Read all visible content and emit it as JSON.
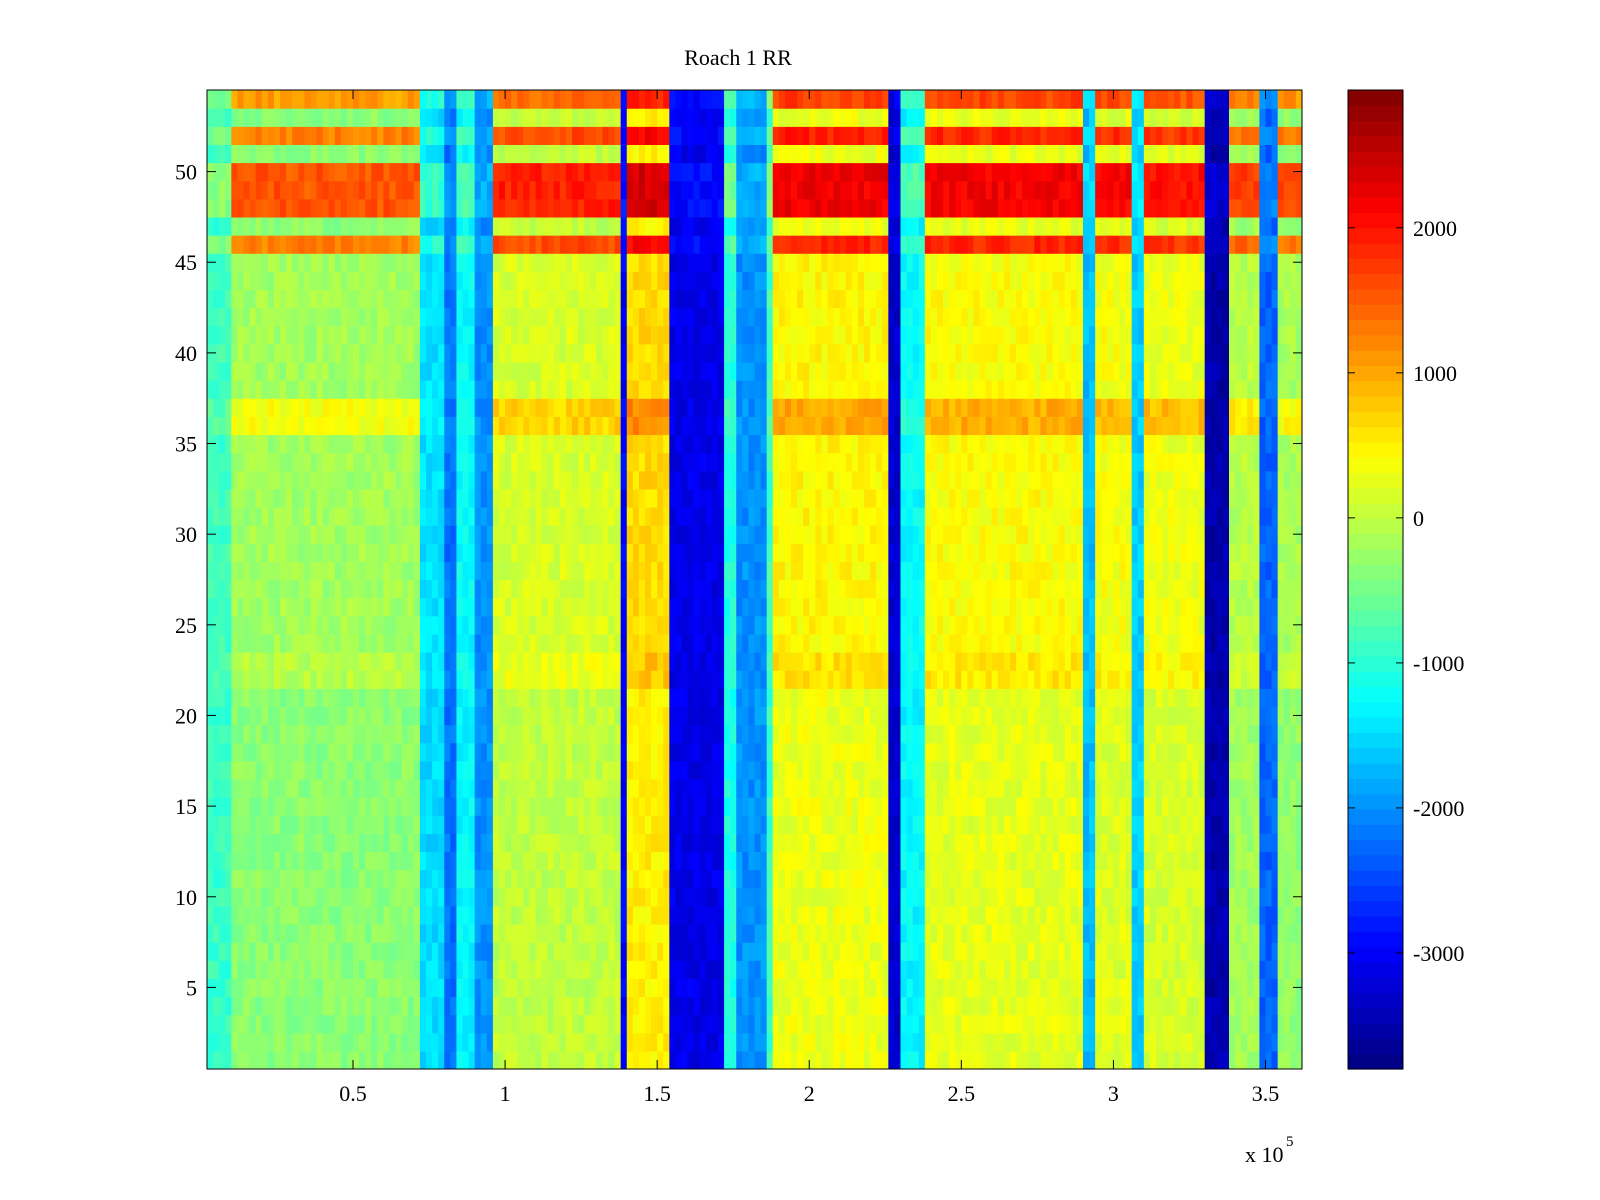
{
  "chart_data": {
    "type": "heatmap",
    "title": "Roach 1 RR",
    "xlabel": "",
    "ylabel": "",
    "x_multiplier_label": "x 10",
    "x_multiplier_exponent": "5",
    "xlim": [
      0.02,
      3.62
    ],
    "ylim": [
      0.5,
      54.5
    ],
    "x_ticks": [
      {
        "value": 0.5,
        "label": "0.5"
      },
      {
        "value": 1,
        "label": "1"
      },
      {
        "value": 1.5,
        "label": "1.5"
      },
      {
        "value": 2,
        "label": "2"
      },
      {
        "value": 2.5,
        "label": "2.5"
      },
      {
        "value": 3,
        "label": "3"
      },
      {
        "value": 3.5,
        "label": "3.5"
      }
    ],
    "y_ticks": [
      {
        "value": 5,
        "label": "5"
      },
      {
        "value": 10,
        "label": "10"
      },
      {
        "value": 15,
        "label": "15"
      },
      {
        "value": 20,
        "label": "20"
      },
      {
        "value": 25,
        "label": "25"
      },
      {
        "value": 30,
        "label": "30"
      },
      {
        "value": 35,
        "label": "35"
      },
      {
        "value": 40,
        "label": "40"
      },
      {
        "value": 45,
        "label": "45"
      },
      {
        "value": 50,
        "label": "50"
      }
    ],
    "colorbar": {
      "colormap": "jet",
      "range": [
        -3800,
        2950
      ],
      "ticks": [
        {
          "value": 2000,
          "label": "2000"
        },
        {
          "value": 1000,
          "label": "1000"
        },
        {
          "value": 0,
          "label": "0"
        },
        {
          "value": -1000,
          "label": "-1000"
        },
        {
          "value": -2000,
          "label": "-2000"
        },
        {
          "value": -3000,
          "label": "-3000"
        }
      ]
    },
    "grid": false,
    "column_profile": [
      {
        "x0": 0.02,
        "x1": 0.09,
        "value": -900
      },
      {
        "x0": 0.09,
        "x1": 0.72,
        "value": -350
      },
      {
        "x0": 0.72,
        "x1": 0.79,
        "value": -1500
      },
      {
        "x0": 0.79,
        "x1": 0.85,
        "value": -2200
      },
      {
        "x0": 0.85,
        "x1": 0.89,
        "value": -1300
      },
      {
        "x0": 0.89,
        "x1": 0.97,
        "value": -2000
      },
      {
        "x0": 0.97,
        "x1": 1.38,
        "value": 0
      },
      {
        "x0": 1.38,
        "x1": 1.41,
        "value": -3000
      },
      {
        "x0": 1.41,
        "x1": 1.53,
        "value": 500
      },
      {
        "x0": 1.53,
        "x1": 1.72,
        "value": -3100
      },
      {
        "x0": 1.72,
        "x1": 1.76,
        "value": -1100
      },
      {
        "x0": 1.76,
        "x1": 1.85,
        "value": -2000
      },
      {
        "x0": 1.85,
        "x1": 1.88,
        "value": -900
      },
      {
        "x0": 1.88,
        "x1": 2.26,
        "value": 300
      },
      {
        "x0": 2.26,
        "x1": 2.29,
        "value": -3300
      },
      {
        "x0": 2.29,
        "x1": 2.37,
        "value": -1300
      },
      {
        "x0": 2.37,
        "x1": 2.89,
        "value": 250
      },
      {
        "x0": 2.89,
        "x1": 2.93,
        "value": -1700
      },
      {
        "x0": 2.93,
        "x1": 3.05,
        "value": 200
      },
      {
        "x0": 3.05,
        "x1": 3.09,
        "value": -1600
      },
      {
        "x0": 3.09,
        "x1": 3.3,
        "value": 150
      },
      {
        "x0": 3.3,
        "x1": 3.38,
        "value": -3500
      },
      {
        "x0": 3.38,
        "x1": 3.48,
        "value": -200
      },
      {
        "x0": 3.48,
        "x1": 3.53,
        "value": -2300
      },
      {
        "x0": 3.53,
        "x1": 3.62,
        "value": -300
      }
    ],
    "row_profile": [
      {
        "y0": 0.5,
        "y1": 21.0,
        "value": 0
      },
      {
        "y0": 21.0,
        "y1": 23.5,
        "value": 300
      },
      {
        "y0": 23.5,
        "y1": 35.5,
        "value": 150
      },
      {
        "y0": 35.5,
        "y1": 37.5,
        "value": 700
      },
      {
        "y0": 37.5,
        "y1": 45.5,
        "value": 150
      },
      {
        "y0": 45.5,
        "y1": 46.5,
        "value": 1600
      },
      {
        "y0": 46.5,
        "y1": 47.5,
        "value": 0
      },
      {
        "y0": 47.5,
        "y1": 50.5,
        "value": 1900
      },
      {
        "y0": 50.5,
        "y1": 51.5,
        "value": 0
      },
      {
        "y0": 51.5,
        "y1": 52.5,
        "value": 1600
      },
      {
        "y0": 52.5,
        "y1": 53.5,
        "value": 0
      },
      {
        "y0": 53.5,
        "y1": 54.5,
        "value": 1400
      }
    ]
  }
}
